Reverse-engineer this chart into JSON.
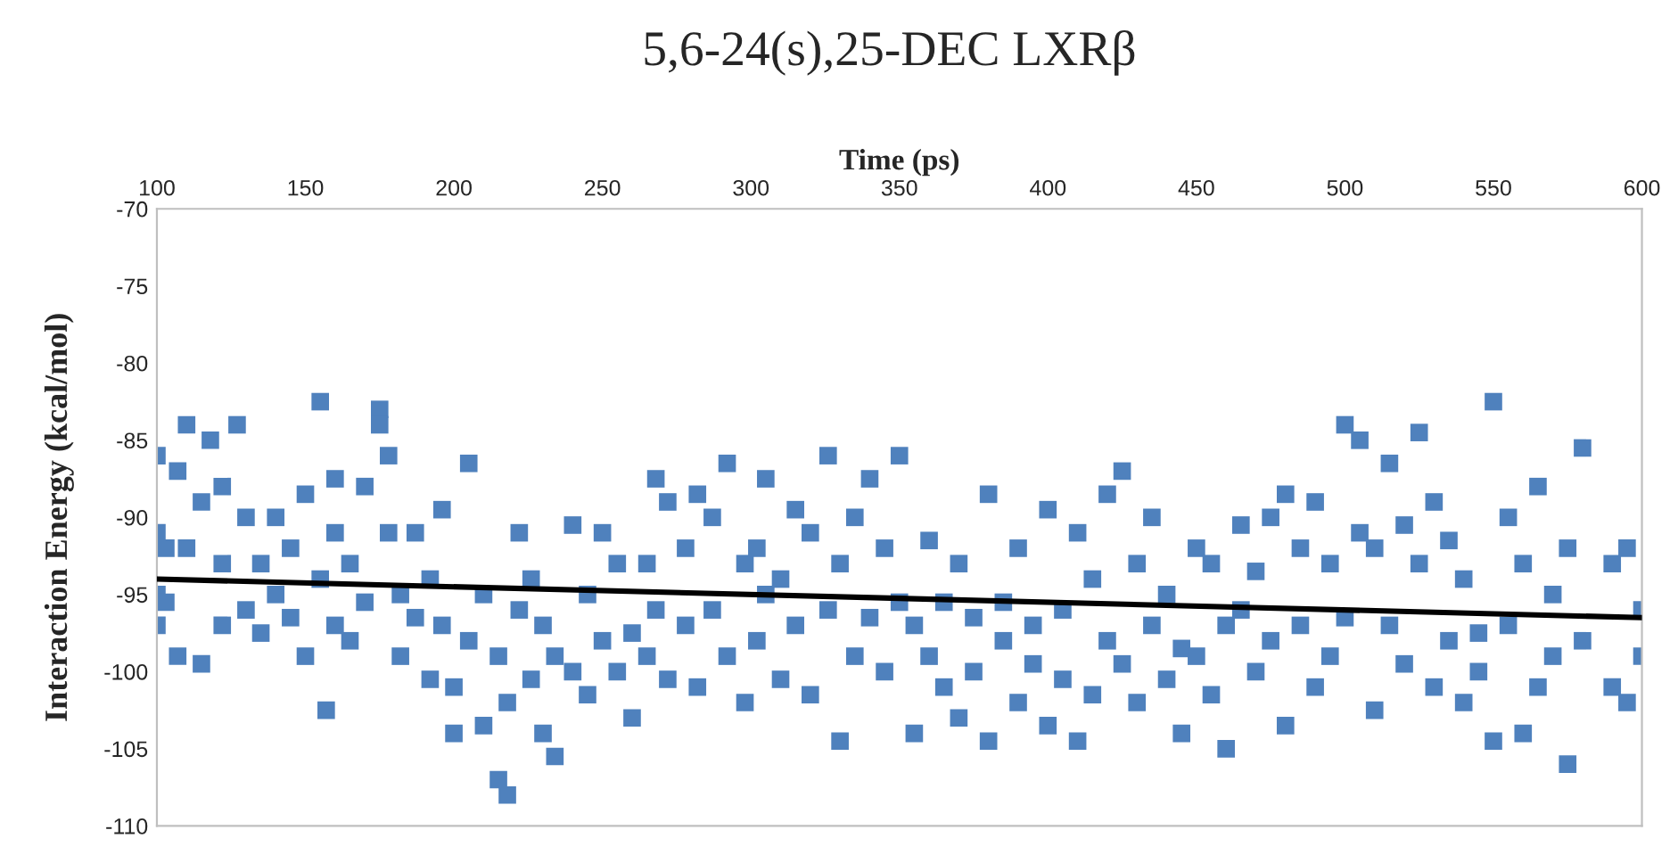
{
  "chart_data": {
    "type": "scatter",
    "title": "5,6-24(s),25-DEC LXRβ",
    "xlabel": "Time (ps)",
    "ylabel": "Interaction Energy (kcal/mol)",
    "xlim": [
      100,
      600
    ],
    "xticks": [
      100,
      150,
      200,
      250,
      300,
      350,
      400,
      450,
      500,
      550,
      600
    ],
    "ylim": [
      -110,
      -70
    ],
    "yticks": [
      -110,
      -105,
      -100,
      -95,
      -90,
      -85,
      -80,
      -75,
      -70
    ],
    "grid": false,
    "series": [
      {
        "marker": "square",
        "color": "#4f81bd",
        "x": [
          100,
          100,
          100,
          100,
          103,
          103,
          107,
          107,
          110,
          110,
          115,
          115,
          118,
          122,
          122,
          122,
          127,
          130,
          130,
          135,
          135,
          140,
          140,
          145,
          145,
          150,
          150,
          155,
          155,
          157,
          160,
          160,
          160,
          165,
          165,
          170,
          170,
          175,
          175,
          178,
          178,
          182,
          182,
          187,
          187,
          192,
          192,
          196,
          196,
          200,
          200,
          205,
          205,
          210,
          210,
          215,
          215,
          218,
          218,
          222,
          222,
          226,
          226,
          230,
          230,
          234,
          234,
          240,
          240,
          245,
          245,
          250,
          250,
          255,
          255,
          260,
          260,
          265,
          265,
          268,
          268,
          272,
          272,
          278,
          278,
          282,
          282,
          287,
          287,
          292,
          292,
          298,
          298,
          302,
          302,
          305,
          305,
          310,
          310,
          315,
          315,
          320,
          320,
          326,
          326,
          330,
          330,
          335,
          335,
          340,
          340,
          345,
          345,
          350,
          350,
          355,
          355,
          360,
          360,
          365,
          365,
          370,
          370,
          375,
          375,
          380,
          380,
          385,
          385,
          390,
          390,
          395,
          395,
          400,
          400,
          405,
          405,
          410,
          410,
          415,
          415,
          420,
          420,
          425,
          425,
          430,
          430,
          435,
          435,
          440,
          440,
          445,
          445,
          450,
          450,
          455,
          455,
          460,
          460,
          465,
          465,
          470,
          470,
          475,
          475,
          480,
          480,
          485,
          485,
          490,
          490,
          495,
          495,
          500,
          500,
          505,
          505,
          510,
          510,
          515,
          515,
          520,
          520,
          525,
          525,
          530,
          530,
          535,
          535,
          540,
          540,
          545,
          545,
          550,
          550,
          555,
          555,
          560,
          560,
          565,
          565,
          570,
          570,
          575,
          575,
          580,
          580,
          590,
          590,
          595,
          595,
          600,
          600
        ],
        "values": [
          -86,
          -97,
          -91,
          -95,
          -95.5,
          -92,
          -87,
          -99,
          -84,
          -92,
          -89,
          -99.5,
          -85,
          -88,
          -93,
          -97,
          -84,
          -90,
          -96,
          -93,
          -97.5,
          -90,
          -95,
          -96.5,
          -92,
          -88.5,
          -99,
          -82.5,
          -94,
          -102.5,
          -87.5,
          -97,
          -91,
          -93,
          -98,
          -88,
          -95.5,
          -83,
          -84,
          -86,
          -91,
          -95,
          -99,
          -91,
          -96.5,
          -100.5,
          -94,
          -97,
          -89.5,
          -104,
          -101,
          -86.5,
          -98,
          -95,
          -103.5,
          -107,
          -99,
          -108,
          -102,
          -96,
          -91,
          -100.5,
          -94,
          -104,
          -97,
          -105.5,
          -99,
          -90.5,
          -100,
          -95,
          -101.5,
          -91,
          -98,
          -100,
          -93,
          -97.5,
          -103,
          -93,
          -99,
          -87.5,
          -96,
          -89,
          -100.5,
          -92,
          -97,
          -88.5,
          -101,
          -96,
          -90,
          -86.5,
          -99,
          -93,
          -102,
          -92,
          -98,
          -87.5,
          -95,
          -94,
          -100.5,
          -89.5,
          -97,
          -91,
          -101.5,
          -86,
          -96,
          -93,
          -104.5,
          -90,
          -99,
          -87.5,
          -96.5,
          -92,
          -100,
          -86,
          -95.5,
          -97,
          -104,
          -91.5,
          -99,
          -95.5,
          -101,
          -93,
          -103,
          -96.5,
          -100,
          -88.5,
          -104.5,
          -95.5,
          -98,
          -92,
          -102,
          -97,
          -99.5,
          -89.5,
          -103.5,
          -96,
          -100.5,
          -91,
          -104.5,
          -94,
          -101.5,
          -88.5,
          -98,
          -87,
          -99.5,
          -93,
          -102,
          -90,
          -97,
          -95,
          -100.5,
          -98.5,
          -104,
          -92,
          -99,
          -93,
          -101.5,
          -105,
          -97,
          -90.5,
          -96,
          -93.5,
          -100,
          -90,
          -98,
          -88.5,
          -103.5,
          -92,
          -97,
          -89,
          -101,
          -93,
          -99,
          -84,
          -96.5,
          -85,
          -91,
          -92,
          -102.5,
          -86.5,
          -97,
          -90.5,
          -99.5,
          -84.5,
          -93,
          -89,
          -101,
          -91.5,
          -98,
          -94,
          -102,
          -97.5,
          -100,
          -82.5,
          -104.5,
          -90,
          -97,
          -93,
          -104,
          -88,
          -101,
          -95,
          -99,
          -92,
          -106,
          -85.5,
          -98,
          -93,
          -101,
          -92,
          -102,
          -96,
          -99
        ]
      },
      {
        "type": "line",
        "marker": "none",
        "color": "#000000",
        "x": [
          100,
          600
        ],
        "values": [
          -94,
          -96.5
        ]
      }
    ]
  }
}
